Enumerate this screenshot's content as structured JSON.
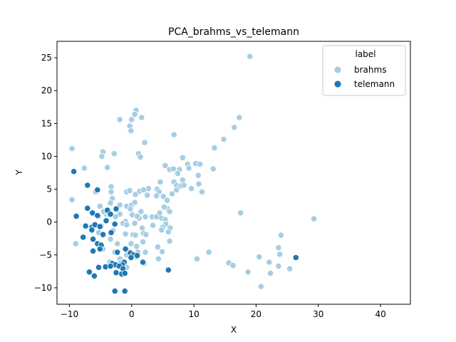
{
  "chart_data": {
    "type": "scatter",
    "title": "PCA_brahms_vs_telemann",
    "xlabel": "X",
    "ylabel": "Y",
    "xlim": [
      -12,
      44.8
    ],
    "ylim": [
      -12.5,
      27.5
    ],
    "xticks": [
      -10,
      0,
      10,
      20,
      30,
      40
    ],
    "yticks": [
      -10,
      -5,
      0,
      5,
      10,
      15,
      20,
      25
    ],
    "grid": false,
    "legend": {
      "title": "label",
      "placement": "top-right"
    },
    "series": [
      {
        "name": "brahms",
        "color": "#a6cee3",
        "points": [
          [
            19.0,
            25.2
          ],
          [
            0.7,
            17.0
          ],
          [
            0.5,
            16.4
          ],
          [
            1.6,
            15.9
          ],
          [
            0.0,
            15.6
          ],
          [
            -1.9,
            15.6
          ],
          [
            17.3,
            15.9
          ],
          [
            -0.3,
            14.6
          ],
          [
            16.5,
            14.4
          ],
          [
            -0.1,
            13.9
          ],
          [
            6.8,
            13.3
          ],
          [
            14.8,
            12.6
          ],
          [
            2.1,
            12.1
          ],
          [
            13.3,
            11.3
          ],
          [
            -9.6,
            11.2
          ],
          [
            -4.6,
            10.7
          ],
          [
            -2.8,
            10.4
          ],
          [
            1.1,
            10.4
          ],
          [
            -4.8,
            10.0
          ],
          [
            1.4,
            9.9
          ],
          [
            8.2,
            9.8
          ],
          [
            10.3,
            8.9
          ],
          [
            9.0,
            8.8
          ],
          [
            11.0,
            8.8
          ],
          [
            -7.6,
            8.2
          ],
          [
            -3.9,
            8.3
          ],
          [
            5.4,
            8.6
          ],
          [
            6.1,
            8.0
          ],
          [
            6.7,
            8.1
          ],
          [
            7.7,
            8.0
          ],
          [
            9.2,
            8.2
          ],
          [
            13.1,
            8.1
          ],
          [
            7.4,
            7.4
          ],
          [
            10.7,
            7.1
          ],
          [
            8.2,
            6.4
          ],
          [
            10.8,
            5.8
          ],
          [
            -3.3,
            5.4
          ],
          [
            4.6,
            6.1
          ],
          [
            6.8,
            6.1
          ],
          [
            7.2,
            5.6
          ],
          [
            7.9,
            5.5
          ],
          [
            8.4,
            5.6
          ],
          [
            9.6,
            5.1
          ],
          [
            -5.8,
            4.6
          ],
          [
            -3.3,
            4.6
          ],
          [
            -0.8,
            4.6
          ],
          [
            -0.3,
            4.8
          ],
          [
            1.3,
            4.7
          ],
          [
            2.7,
            5.1
          ],
          [
            4.1,
            5.0
          ],
          [
            4.4,
            4.6
          ],
          [
            7.2,
            4.9
          ],
          [
            11.3,
            4.6
          ],
          [
            6.5,
            4.3
          ],
          [
            -3.1,
            3.6
          ],
          [
            0.6,
            4.2
          ],
          [
            1.9,
            4.9
          ],
          [
            2.5,
            4.1
          ],
          [
            4.0,
            4.0
          ],
          [
            5.1,
            3.9
          ],
          [
            -9.6,
            3.4
          ],
          [
            -3.4,
            2.9
          ],
          [
            -1.9,
            2.6
          ],
          [
            -0.8,
            2.4
          ],
          [
            0.0,
            2.6
          ],
          [
            0.5,
            3.0
          ],
          [
            5.7,
            3.3
          ],
          [
            5.8,
            2.0
          ],
          [
            6.1,
            1.6
          ],
          [
            -5.1,
            2.4
          ],
          [
            -4.1,
            1.2
          ],
          [
            -3.6,
            1.1
          ],
          [
            -1.9,
            1.2
          ],
          [
            -0.2,
            2.0
          ],
          [
            0.1,
            1.1
          ],
          [
            1.2,
            0.6
          ],
          [
            1.5,
            1.6
          ],
          [
            3.3,
            0.8
          ],
          [
            4.0,
            0.8
          ],
          [
            4.5,
            1.4
          ],
          [
            5.2,
            2.3
          ],
          [
            17.5,
            1.4
          ],
          [
            29.3,
            0.5
          ],
          [
            -5.3,
            0.9
          ],
          [
            -4.5,
            1.6
          ],
          [
            -2.6,
            0.8
          ],
          [
            -1.0,
            0.1
          ],
          [
            0.9,
            0.9
          ],
          [
            2.2,
            0.8
          ],
          [
            4.8,
            0.6
          ],
          [
            5.4,
            0.4
          ],
          [
            5.5,
            -0.3
          ],
          [
            5.0,
            -0.8
          ],
          [
            -4.9,
            -0.6
          ],
          [
            -3.0,
            -1.3
          ],
          [
            -1.4,
            -0.2
          ],
          [
            -0.8,
            -0.4
          ],
          [
            0.5,
            -0.2
          ],
          [
            1.7,
            -0.9
          ],
          [
            3.4,
            -0.5
          ],
          [
            4.8,
            -1.2
          ],
          [
            6.2,
            -0.9
          ],
          [
            -9.0,
            -3.3
          ],
          [
            -5.3,
            -1.6
          ],
          [
            -4.6,
            -2.0
          ],
          [
            -3.4,
            -2.6
          ],
          [
            -2.3,
            -3.3
          ],
          [
            -1.0,
            -1.8
          ],
          [
            0.2,
            -1.9
          ],
          [
            0.6,
            -2.0
          ],
          [
            1.9,
            -1.7
          ],
          [
            2.3,
            -1.9
          ],
          [
            5.9,
            -1.5
          ],
          [
            24.0,
            -2.0
          ],
          [
            -0.1,
            -3.3
          ],
          [
            0.8,
            -3.7
          ],
          [
            1.8,
            -3.0
          ],
          [
            4.2,
            -3.8
          ],
          [
            6.1,
            -2.9
          ],
          [
            23.6,
            -3.9
          ],
          [
            -4.6,
            -4.1
          ],
          [
            -2.7,
            -4.6
          ],
          [
            -0.6,
            -4.4
          ],
          [
            1.0,
            -4.6
          ],
          [
            2.2,
            -4.6
          ],
          [
            4.9,
            -4.5
          ],
          [
            12.4,
            -4.6
          ],
          [
            23.8,
            -4.9
          ],
          [
            20.5,
            -5.3
          ],
          [
            -1.9,
            -5.6
          ],
          [
            -0.8,
            -5.0
          ],
          [
            0.8,
            -5.3
          ],
          [
            10.5,
            -5.6
          ],
          [
            4.3,
            -5.6
          ],
          [
            22.1,
            -6.1
          ],
          [
            -3.5,
            -6.1
          ],
          [
            -2.1,
            -6.6
          ],
          [
            -1.8,
            -6.2
          ],
          [
            2.0,
            -6.3
          ],
          [
            15.6,
            -6.2
          ],
          [
            16.3,
            -6.6
          ],
          [
            23.6,
            -6.7
          ],
          [
            25.4,
            -7.1
          ],
          [
            -0.8,
            -6.9
          ],
          [
            18.7,
            -7.6
          ],
          [
            22.3,
            -7.8
          ],
          [
            -2.4,
            -7.8
          ],
          [
            20.8,
            -9.8
          ]
        ]
      },
      {
        "name": "telemann",
        "color": "#1f78b4",
        "points": [
          [
            -9.3,
            7.7
          ],
          [
            -7.1,
            5.6
          ],
          [
            -5.5,
            4.9
          ],
          [
            -7.1,
            2.1
          ],
          [
            -6.3,
            1.4
          ],
          [
            -8.9,
            0.9
          ],
          [
            -5.5,
            1.0
          ],
          [
            -3.9,
            1.8
          ],
          [
            -3.4,
            1.2
          ],
          [
            -2.5,
            2.0
          ],
          [
            -4.1,
            0.2
          ],
          [
            -2.7,
            -0.3
          ],
          [
            -7.4,
            -0.6
          ],
          [
            -6.4,
            -0.8
          ],
          [
            -5.9,
            -0.4
          ],
          [
            -5.1,
            -0.7
          ],
          [
            -6.4,
            -1.2
          ],
          [
            -4.6,
            -1.9
          ],
          [
            -3.3,
            -1.6
          ],
          [
            -6.2,
            -2.6
          ],
          [
            -5.5,
            -3.3
          ],
          [
            -4.9,
            -3.5
          ],
          [
            -7.8,
            -2.3
          ],
          [
            -6.2,
            -4.4
          ],
          [
            -1.0,
            -4.1
          ],
          [
            -5.1,
            -4.1
          ],
          [
            -2.3,
            -4.6
          ],
          [
            -0.2,
            -4.7
          ],
          [
            0.3,
            -5.0
          ],
          [
            0.9,
            -5.1
          ],
          [
            -0.1,
            -5.4
          ],
          [
            -3.1,
            -6.3
          ],
          [
            -2.6,
            -6.5
          ],
          [
            -1.2,
            -6.1
          ],
          [
            -1.5,
            -6.5
          ],
          [
            26.4,
            -5.4
          ],
          [
            1.8,
            -6.1
          ],
          [
            -5.3,
            -6.9
          ],
          [
            -4.2,
            -6.8
          ],
          [
            -3.4,
            -6.7
          ],
          [
            -2.0,
            -6.7
          ],
          [
            -1.4,
            -7.1
          ],
          [
            -6.8,
            -7.6
          ],
          [
            -2.5,
            -7.7
          ],
          [
            -1.6,
            -7.9
          ],
          [
            -1.1,
            -7.8
          ],
          [
            -6.0,
            -8.2
          ],
          [
            5.9,
            -7.3
          ],
          [
            -2.7,
            -10.5
          ],
          [
            -1.1,
            -10.5
          ]
        ]
      }
    ]
  }
}
